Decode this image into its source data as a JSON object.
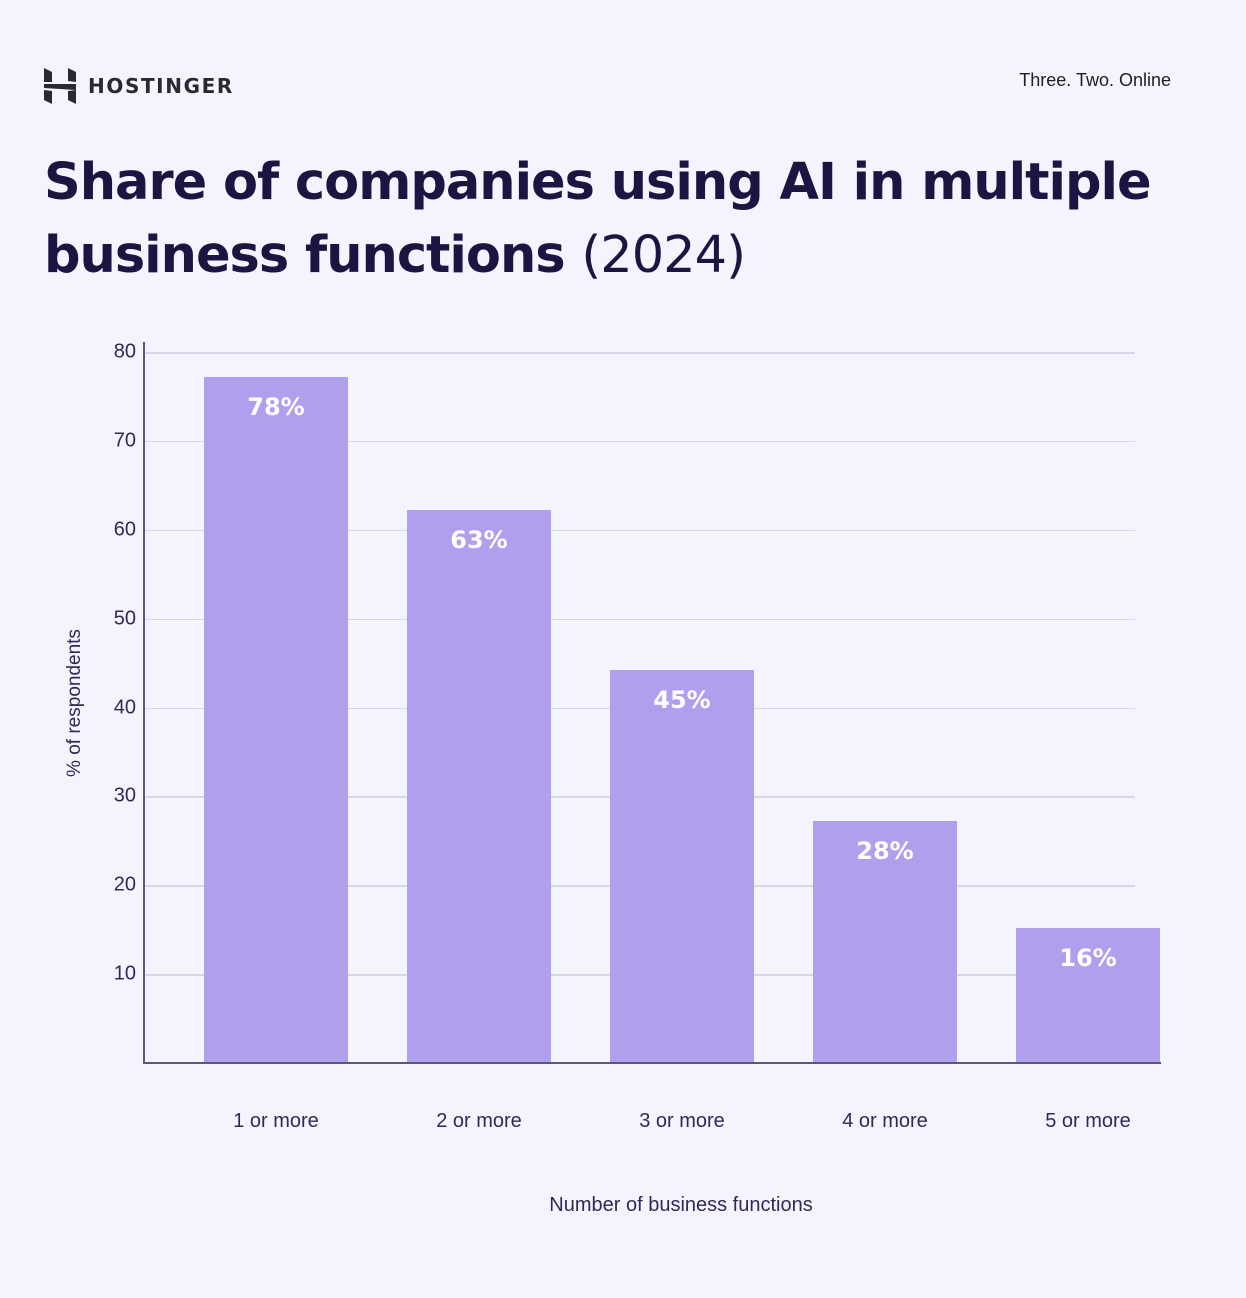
{
  "header": {
    "brand": "HOSTINGER",
    "tagline": "Three. Two. Online"
  },
  "title": {
    "main": "Share of companies using AI in multiple business functions",
    "year": "(2024)"
  },
  "colors": {
    "background": "#f4f4fe",
    "bar": "#b09fec",
    "title": "#1d1442",
    "axis": "#5c5680",
    "grid": "#d8d6e8",
    "bar_label": "#ffffff"
  },
  "chart_data": {
    "type": "bar",
    "title": "Share of companies using AI in multiple business functions (2024)",
    "categories": [
      "1 or more",
      "2 or more",
      "3 or more",
      "4 or more",
      "5 or more"
    ],
    "values": [
      78,
      63,
      45,
      28,
      16
    ],
    "value_labels": [
      "78%",
      "63%",
      "45%",
      "28%",
      "16%"
    ],
    "xlabel": "Number of business functions",
    "ylabel": "% of respondents",
    "ylim": [
      0,
      80
    ],
    "yticks": [
      10,
      20,
      30,
      40,
      50,
      60,
      70,
      80
    ],
    "grid": true,
    "legend": null
  }
}
